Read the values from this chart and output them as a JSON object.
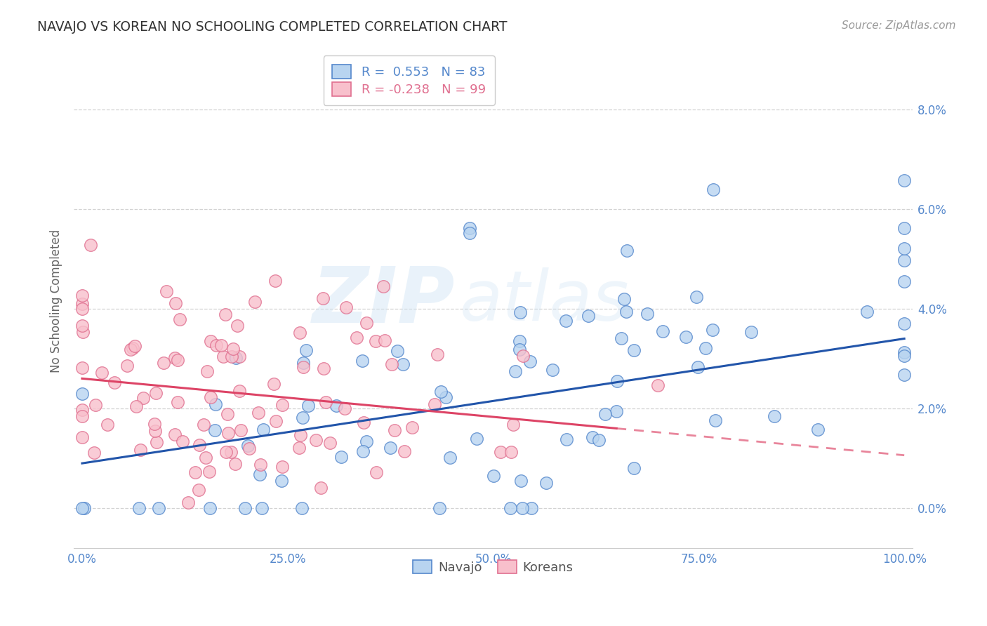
{
  "title": "NAVAJO VS KOREAN NO SCHOOLING COMPLETED CORRELATION CHART",
  "source": "Source: ZipAtlas.com",
  "ylabel": "No Schooling Completed",
  "navajo_R": 0.553,
  "navajo_N": 83,
  "korean_R": -0.238,
  "korean_N": 99,
  "navajo_scatter_color": "#b8d4f0",
  "navajo_edge_color": "#5588cc",
  "korean_scatter_color": "#f8c0cc",
  "korean_edge_color": "#e07090",
  "navajo_line_color": "#2255aa",
  "korean_line_color": "#dd4466",
  "watermark_color": "#c8ddf0",
  "legend_navajo": "Navajo",
  "legend_korean": "Koreans",
  "background_color": "#ffffff",
  "grid_color": "#cccccc",
  "title_color": "#333333",
  "tick_color": "#5588cc",
  "xlabel_ticks": [
    "0.0%",
    "25.0%",
    "50.0%",
    "75.0%",
    "100.0%"
  ],
  "ylabel_ticks": [
    "0.0%",
    "2.0%",
    "4.0%",
    "6.0%",
    "8.0%"
  ]
}
